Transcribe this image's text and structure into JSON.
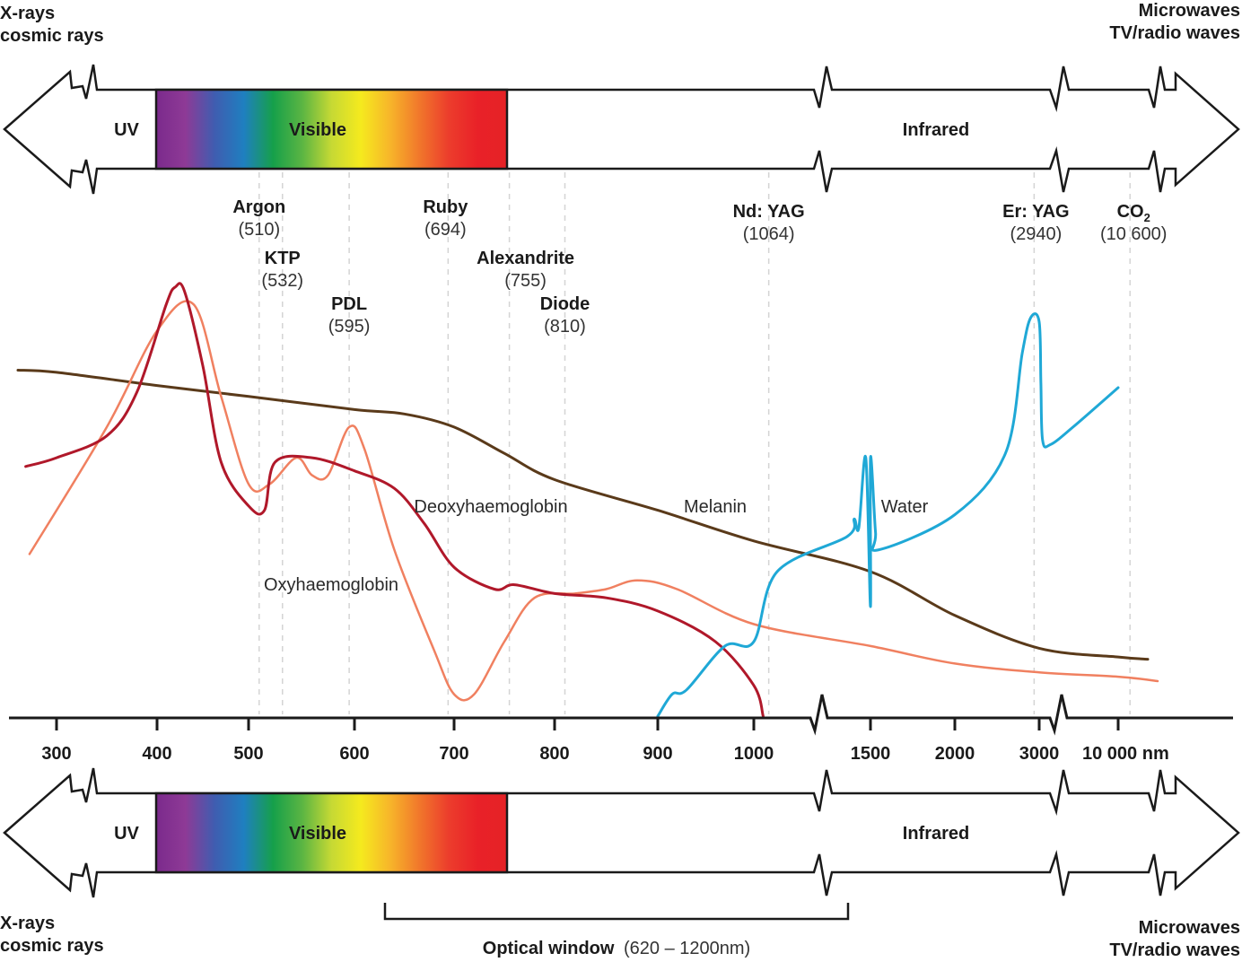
{
  "corners": {
    "top_left": [
      "X-rays",
      "cosmic rays"
    ],
    "top_right": [
      "Microwaves",
      "TV/radio waves"
    ],
    "bottom_left": [
      "X-rays",
      "cosmic rays"
    ],
    "bottom_right": [
      "Microwaves",
      "TV/radio waves"
    ]
  },
  "spectrum_bar": {
    "regions": {
      "uv": "UV",
      "visible": "Visible",
      "infrared": "Infrared"
    },
    "visible_range_nm": [
      400,
      750
    ],
    "gradient_colors": [
      "#7b2a8c",
      "#8e3a96",
      "#3f5db0",
      "#1f7fc0",
      "#16a04a",
      "#5bb543",
      "#c6d934",
      "#f5ea1e",
      "#f7b52a",
      "#f1772b",
      "#ec3d2c",
      "#e92128",
      "#e52226"
    ]
  },
  "lasers": [
    {
      "name": "Argon",
      "wavelength": "(510)",
      "nm": 510
    },
    {
      "name": "KTP",
      "wavelength": "(532)",
      "nm": 532
    },
    {
      "name": "PDL",
      "wavelength": "(595)",
      "nm": 595
    },
    {
      "name": "Ruby",
      "wavelength": "(694)",
      "nm": 694
    },
    {
      "name": "Alexandrite",
      "wavelength": "(755)",
      "nm": 755
    },
    {
      "name": "Diode",
      "wavelength": "(810)",
      "nm": 810
    },
    {
      "name": "Nd: YAG",
      "wavelength": "(1064)",
      "nm": 1064
    },
    {
      "name": "Er: YAG",
      "wavelength": "(2940)",
      "nm": 2940
    },
    {
      "name": "CO",
      "name_sub": "2",
      "wavelength": "(10 600)",
      "nm": 10600
    }
  ],
  "optical_window": {
    "label": "Optical window",
    "range": "(620 – 1200nm)",
    "range_nm": [
      620,
      1200
    ]
  },
  "chart_data": {
    "type": "line",
    "title": "",
    "xlabel": "nm",
    "ylabel": "",
    "x_scale": "piecewise (axis breaks between 1000–1500 and 2000–3000)",
    "xticks": [
      300,
      400,
      500,
      600,
      700,
      800,
      900,
      1000,
      1500,
      2000,
      3000,
      10000
    ],
    "xtick_labels": [
      "300",
      "400",
      "500",
      "600",
      "700",
      "800",
      "900",
      "1000",
      "1500",
      "2000",
      "3000",
      "10 000 nm"
    ],
    "y_units": "relative absorption (0–1, unlabeled)",
    "ylim": [
      0,
      1
    ],
    "grid": false,
    "series": [
      {
        "name": "Melanin",
        "label": "Melanin",
        "color": "#5a3a1a",
        "points": [
          [
            250,
            0.79
          ],
          [
            300,
            0.785
          ],
          [
            400,
            0.755
          ],
          [
            500,
            0.73
          ],
          [
            600,
            0.7
          ],
          [
            650,
            0.69
          ],
          [
            700,
            0.66
          ],
          [
            750,
            0.6
          ],
          [
            800,
            0.54
          ],
          [
            900,
            0.47
          ],
          [
            1000,
            0.4
          ],
          [
            1500,
            0.33
          ],
          [
            2000,
            0.23
          ],
          [
            3000,
            0.155
          ],
          [
            10000,
            0.135
          ],
          [
            11500,
            0.13
          ]
        ]
      },
      {
        "name": "Deoxyhaemoglobin",
        "label": "Deoxyhaemoglobin",
        "color": "#b0182a",
        "points": [
          [
            260,
            0.57
          ],
          [
            300,
            0.59
          ],
          [
            350,
            0.64
          ],
          [
            380,
            0.74
          ],
          [
            410,
            0.94
          ],
          [
            420,
            0.98
          ],
          [
            430,
            0.97
          ],
          [
            450,
            0.8
          ],
          [
            470,
            0.58
          ],
          [
            500,
            0.48
          ],
          [
            515,
            0.47
          ],
          [
            525,
            0.58
          ],
          [
            560,
            0.59
          ],
          [
            600,
            0.56
          ],
          [
            640,
            0.52
          ],
          [
            670,
            0.44
          ],
          [
            700,
            0.34
          ],
          [
            740,
            0.29
          ],
          [
            760,
            0.3
          ],
          [
            800,
            0.28
          ],
          [
            850,
            0.27
          ],
          [
            900,
            0.24
          ],
          [
            960,
            0.17
          ],
          [
            1000,
            0.07
          ],
          [
            1040,
            0.0
          ]
        ]
      },
      {
        "name": "Oxyhaemoglobin",
        "label": "Oxyhaemoglobin",
        "color": "#f08060",
        "points": [
          [
            265,
            0.37
          ],
          [
            350,
            0.66
          ],
          [
            400,
            0.88
          ],
          [
            440,
            0.94
          ],
          [
            470,
            0.73
          ],
          [
            500,
            0.53
          ],
          [
            520,
            0.53
          ],
          [
            545,
            0.59
          ],
          [
            560,
            0.55
          ],
          [
            575,
            0.55
          ],
          [
            595,
            0.66
          ],
          [
            610,
            0.61
          ],
          [
            640,
            0.38
          ],
          [
            680,
            0.15
          ],
          [
            700,
            0.05
          ],
          [
            720,
            0.05
          ],
          [
            750,
            0.17
          ],
          [
            780,
            0.27
          ],
          [
            820,
            0.28
          ],
          [
            850,
            0.29
          ],
          [
            880,
            0.31
          ],
          [
            920,
            0.29
          ],
          [
            1000,
            0.21
          ],
          [
            1500,
            0.16
          ],
          [
            2000,
            0.12
          ],
          [
            3000,
            0.1
          ],
          [
            10000,
            0.09
          ],
          [
            12000,
            0.08
          ]
        ]
      },
      {
        "name": "Water",
        "label": "Water",
        "color": "#1fa8d6",
        "points": [
          [
            900,
            0.0
          ],
          [
            915,
            0.05
          ],
          [
            930,
            0.06
          ],
          [
            970,
            0.16
          ],
          [
            1000,
            0.17
          ],
          [
            1500,
            0.25
          ],
          [
            1100,
            0.33
          ],
          [
            1400,
            0.41
          ],
          [
            1430,
            0.45
          ],
          [
            1450,
            0.43
          ],
          [
            1480,
            0.59
          ],
          [
            1500,
            0.59
          ],
          [
            1530,
            0.42
          ],
          [
            1550,
            0.38
          ],
          [
            2000,
            0.46
          ],
          [
            2600,
            0.6
          ],
          [
            2800,
            0.83
          ],
          [
            2900,
            0.91
          ],
          [
            3000,
            0.9
          ],
          [
            3150,
            0.76
          ],
          [
            3300,
            0.63
          ],
          [
            4000,
            0.62
          ],
          [
            6000,
            0.66
          ],
          [
            10000,
            0.75
          ]
        ]
      }
    ]
  }
}
